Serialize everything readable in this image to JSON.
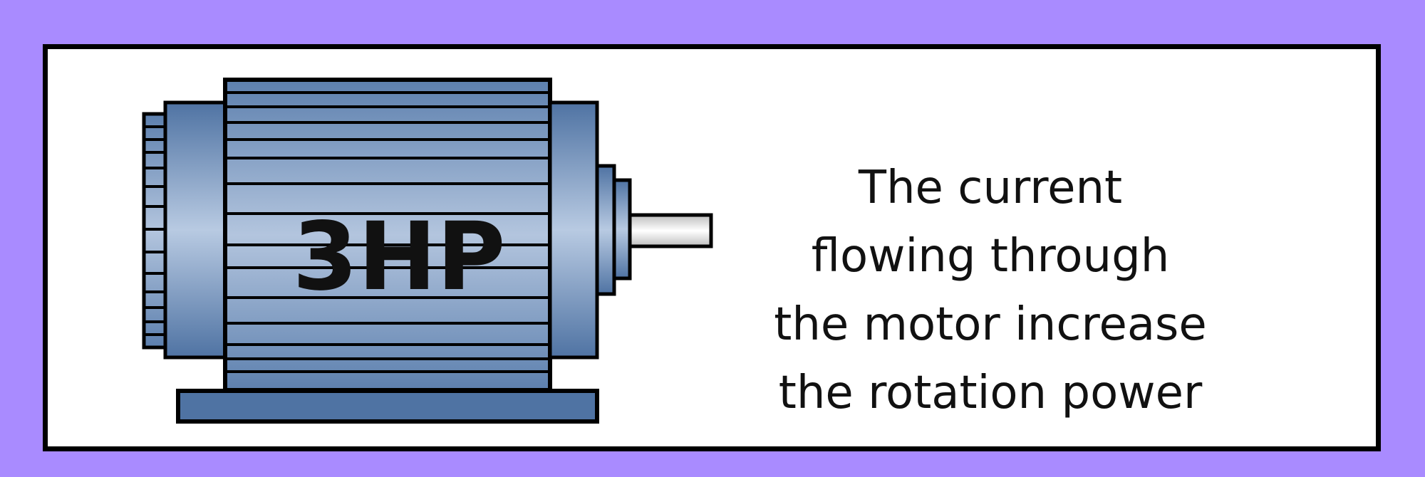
{
  "motor": {
    "rating_label": "3HP",
    "body_color": "#4f73a3",
    "fin_color": "#a8bdd8",
    "shaft_color": "#e9e9e9"
  },
  "caption": {
    "lines": [
      "The current",
      "flowing through",
      "the motor increase",
      "the rotation power"
    ]
  },
  "theme": {
    "background": "#a98bff",
    "card": "#ffffff",
    "outline": "#000000"
  }
}
